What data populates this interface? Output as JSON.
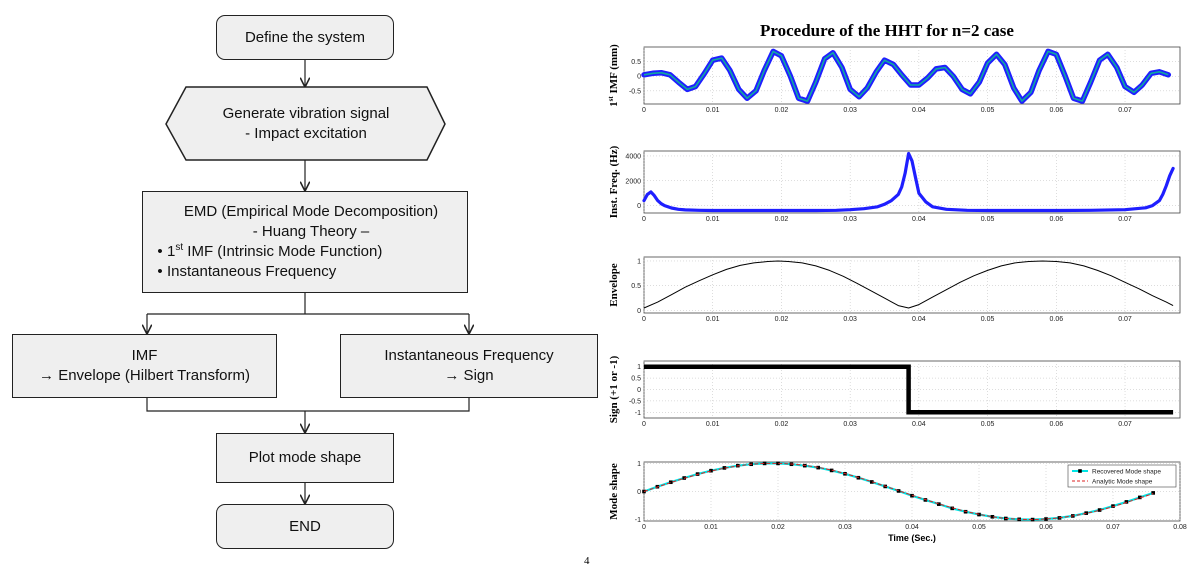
{
  "flowchart": {
    "define": "Define the system",
    "generate_line1": "Generate vibration signal",
    "generate_line2": "- Impact excitation",
    "emd_line1": "EMD (Empirical Mode Decomposition)",
    "emd_line2": "-    Huang Theory –",
    "emd_bullet1_sup": "st",
    "emd_bullet1_num": "1",
    "emd_bullet1_rest": " IMF (Intrinsic Mode Function)",
    "emd_bullet2": "Instantaneous Frequency",
    "imf_line1": "IMF",
    "imf_line2": "→ Envelope (Hilbert Transform)",
    "inst_line1": "Instantaneous Frequency",
    "inst_line2": "→ Sign",
    "plot": "Plot mode shape",
    "end": "END"
  },
  "footnote": "4",
  "chart_data": {
    "type": "line",
    "title": "Procedure of the HHT for n=2 case",
    "xlabel": "Time (Sec.)",
    "xlim": [
      0,
      0.078
    ],
    "xticks": [
      0,
      0.01,
      0.02,
      0.03,
      0.04,
      0.05,
      0.06,
      0.07
    ],
    "xtick_labels": [
      "0",
      "0.01",
      "0.02",
      "0.03",
      "0.04",
      "0.05",
      "0.06",
      "0.07"
    ],
    "panels": [
      {
        "name": "imf",
        "ylabel": "1st IMF (mm)",
        "ylabel_main": "1",
        "ylabel_sup": "st",
        "ylabel_rest": " IMF (mm)",
        "ylim": [
          -0.95,
          1.0
        ],
        "yticks": [
          -0.5,
          0,
          0.5
        ],
        "ytick_labels": [
          "-0.5",
          "0",
          "0.5"
        ],
        "series": [
          {
            "name": "1st IMF",
            "color": "#1f1fff",
            "fill": "#10a8a0",
            "x": [
              0,
              0.0013,
              0.0025,
              0.0038,
              0.005,
              0.0063,
              0.0075,
              0.0088,
              0.01,
              0.0113,
              0.0125,
              0.0138,
              0.015,
              0.0163,
              0.0175,
              0.0188,
              0.02,
              0.0213,
              0.0225,
              0.0238,
              0.025,
              0.0263,
              0.0275,
              0.0288,
              0.03,
              0.0313,
              0.0325,
              0.0338,
              0.035,
              0.0363,
              0.0375,
              0.0388,
              0.04,
              0.0413,
              0.0425,
              0.0438,
              0.045,
              0.0463,
              0.0475,
              0.0488,
              0.05,
              0.0513,
              0.0525,
              0.0538,
              0.055,
              0.0563,
              0.0575,
              0.0588,
              0.06,
              0.0613,
              0.0625,
              0.0638,
              0.065,
              0.0663,
              0.0675,
              0.0688,
              0.07,
              0.0713,
              0.0725,
              0.0738,
              0.075,
              0.0763
            ],
            "y": [
              0.05,
              0.1,
              0.12,
              0.05,
              -0.2,
              -0.45,
              -0.35,
              0.1,
              0.55,
              0.62,
              0.2,
              -0.45,
              -0.75,
              -0.5,
              0.2,
              0.85,
              0.7,
              0.0,
              -0.75,
              -0.85,
              -0.2,
              0.6,
              0.8,
              0.3,
              -0.45,
              -0.7,
              -0.4,
              0.15,
              0.55,
              0.4,
              0.05,
              -0.3,
              -0.3,
              -0.05,
              0.25,
              0.3,
              0.0,
              -0.45,
              -0.6,
              -0.2,
              0.45,
              0.75,
              0.4,
              -0.4,
              -0.85,
              -0.55,
              0.2,
              0.85,
              0.75,
              0.0,
              -0.75,
              -0.85,
              -0.2,
              0.55,
              0.75,
              0.3,
              -0.35,
              -0.55,
              -0.3,
              0.1,
              0.15,
              0.05
            ]
          }
        ]
      },
      {
        "name": "freq",
        "ylabel": "Inst. Freq. (Hz)",
        "ylim": [
          -600,
          4400
        ],
        "yticks": [
          0,
          2000,
          4000
        ],
        "ytick_labels": [
          "0",
          "2000",
          "4000"
        ],
        "series": [
          {
            "name": "Inst. Freq.",
            "color": "#1f1fff",
            "x": [
              0,
              0.0005,
              0.001,
              0.0015,
              0.002,
              0.0025,
              0.003,
              0.004,
              0.005,
              0.006,
              0.008,
              0.01,
              0.015,
              0.02,
              0.025,
              0.028,
              0.03,
              0.032,
              0.034,
              0.035,
              0.036,
              0.037,
              0.0375,
              0.038,
              0.0385,
              0.039,
              0.0395,
              0.04,
              0.041,
              0.042,
              0.044,
              0.047,
              0.05,
              0.055,
              0.06,
              0.065,
              0.07,
              0.073,
              0.074,
              0.075,
              0.0755,
              0.076,
              0.0765,
              0.077
            ],
            "y": [
              400,
              900,
              1100,
              800,
              400,
              150,
              0,
              -200,
              -300,
              -350,
              -380,
              -400,
              -400,
              -400,
              -400,
              -380,
              -330,
              -250,
              -100,
              100,
              400,
              900,
              1500,
              2600,
              4200,
              3600,
              2300,
              1000,
              300,
              -100,
              -300,
              -380,
              -400,
              -400,
              -400,
              -380,
              -330,
              -180,
              0,
              400,
              900,
              1600,
              2400,
              3000
            ]
          }
        ]
      },
      {
        "name": "envelope",
        "ylabel": "Envelope",
        "ylim": [
          -0.05,
          1.08
        ],
        "yticks": [
          0,
          0.5,
          1
        ],
        "ytick_labels": [
          "0",
          "0.5",
          "1"
        ],
        "series": [
          {
            "name": "Envelope",
            "color": "#000000",
            "x": [
              0,
              0.002,
              0.004,
              0.006,
              0.008,
              0.01,
              0.012,
              0.014,
              0.016,
              0.018,
              0.0195,
              0.021,
              0.023,
              0.025,
              0.027,
              0.029,
              0.031,
              0.033,
              0.035,
              0.037,
              0.0385,
              0.04,
              0.042,
              0.044,
              0.046,
              0.048,
              0.05,
              0.052,
              0.054,
              0.056,
              0.058,
              0.06,
              0.062,
              0.064,
              0.066,
              0.068,
              0.07,
              0.072,
              0.074,
              0.076,
              0.077
            ],
            "y": [
              0.05,
              0.17,
              0.32,
              0.47,
              0.6,
              0.72,
              0.83,
              0.91,
              0.96,
              0.99,
              1.0,
              0.99,
              0.96,
              0.9,
              0.81,
              0.69,
              0.55,
              0.4,
              0.25,
              0.1,
              0.05,
              0.12,
              0.27,
              0.42,
              0.57,
              0.7,
              0.81,
              0.9,
              0.96,
              0.99,
              1.0,
              0.99,
              0.96,
              0.9,
              0.81,
              0.7,
              0.57,
              0.44,
              0.3,
              0.17,
              0.1
            ]
          }
        ]
      },
      {
        "name": "sign",
        "ylabel": "Sign (+1 or -1)",
        "ylim": [
          -1.25,
          1.25
        ],
        "yticks": [
          -1,
          -0.5,
          0,
          0.5,
          1
        ],
        "ytick_labels": [
          "-1",
          "-0.5",
          "0",
          "0.5",
          "1"
        ],
        "series": [
          {
            "name": "Sign",
            "color": "#000000",
            "x": [
              0,
              0.0385,
              0.0385,
              0.077
            ],
            "y": [
              1,
              1,
              -1,
              -1
            ]
          }
        ]
      },
      {
        "name": "mode",
        "ylabel": "Mode shape",
        "xlim": [
          0,
          0.08
        ],
        "ylim": [
          -1.05,
          1.05
        ],
        "yticks": [
          -1,
          0,
          1
        ],
        "ytick_labels": [
          "-1",
          "0",
          "1"
        ],
        "xticks": [
          0,
          0.01,
          0.02,
          0.03,
          0.04,
          0.05,
          0.06,
          0.07,
          0.08
        ],
        "xtick_labels": [
          "0",
          "0.01",
          "0.02",
          "0.03",
          "0.04",
          "0.05",
          "0.06",
          "0.07",
          "0.08"
        ],
        "legend": [
          "Recovered Mode shape",
          "Analytic Mode shape"
        ],
        "series": [
          {
            "name": "Recovered Mode shape",
            "color": "#00e5e5",
            "marker": "#000000",
            "x": [
              0,
              0.002,
              0.004,
              0.006,
              0.008,
              0.01,
              0.012,
              0.014,
              0.016,
              0.018,
              0.02,
              0.022,
              0.024,
              0.026,
              0.028,
              0.03,
              0.032,
              0.034,
              0.036,
              0.038,
              0.04,
              0.042,
              0.044,
              0.046,
              0.048,
              0.05,
              0.052,
              0.054,
              0.056,
              0.058,
              0.06,
              0.062,
              0.064,
              0.066,
              0.068,
              0.07,
              0.072,
              0.074,
              0.076
            ],
            "y": [
              0.0,
              0.17,
              0.33,
              0.48,
              0.62,
              0.74,
              0.84,
              0.92,
              0.97,
              1.0,
              1.0,
              0.97,
              0.92,
              0.85,
              0.75,
              0.63,
              0.49,
              0.34,
              0.18,
              0.02,
              -0.15,
              -0.3,
              -0.45,
              -0.6,
              -0.72,
              -0.82,
              -0.9,
              -0.96,
              -0.99,
              -1.0,
              -0.98,
              -0.94,
              -0.87,
              -0.77,
              -0.66,
              -0.52,
              -0.37,
              -0.21,
              -0.05
            ]
          },
          {
            "name": "Analytic Mode shape",
            "color": "#dd2222",
            "x": [
              0,
              0.002,
              0.004,
              0.006,
              0.008,
              0.01,
              0.012,
              0.014,
              0.016,
              0.018,
              0.02,
              0.022,
              0.024,
              0.026,
              0.028,
              0.03,
              0.032,
              0.034,
              0.036,
              0.038,
              0.04,
              0.042,
              0.044,
              0.046,
              0.048,
              0.05,
              0.052,
              0.054,
              0.056,
              0.058,
              0.06,
              0.062,
              0.064,
              0.066,
              0.068,
              0.07,
              0.072,
              0.074,
              0.076
            ],
            "y": [
              0.0,
              0.16,
              0.32,
              0.47,
              0.61,
              0.73,
              0.83,
              0.91,
              0.97,
              1.0,
              1.0,
              0.98,
              0.93,
              0.86,
              0.76,
              0.64,
              0.5,
              0.35,
              0.19,
              0.03,
              -0.13,
              -0.29,
              -0.44,
              -0.58,
              -0.71,
              -0.81,
              -0.9,
              -0.96,
              -0.99,
              -1.0,
              -0.98,
              -0.94,
              -0.87,
              -0.78,
              -0.67,
              -0.54,
              -0.39,
              -0.23,
              -0.07
            ]
          }
        ]
      }
    ]
  }
}
